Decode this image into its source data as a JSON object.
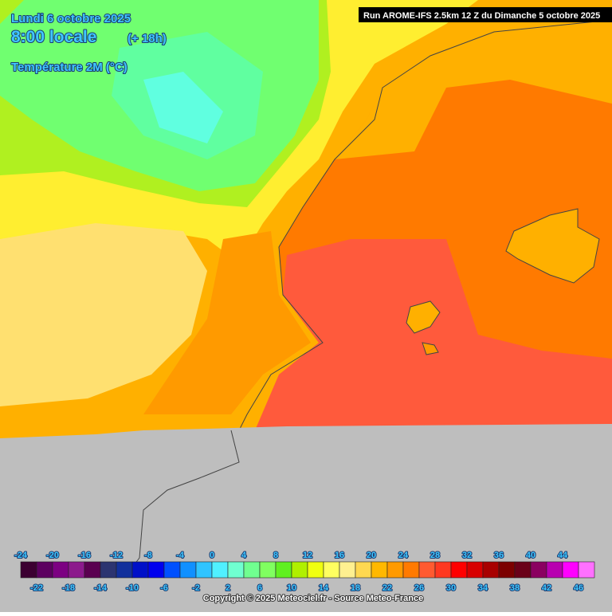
{
  "header": {
    "date": "Lundi 6 octobre 2025",
    "time": "8:00 locale",
    "lead": "(+ 18h)",
    "parameter": "Température 2M (°C)",
    "run": "Run AROME-IFS 2.5km 12 Z du Dimanche 5 octobre 2025"
  },
  "legend": {
    "labels": [
      -24,
      -22,
      -20,
      -18,
      -16,
      -14,
      -12,
      -10,
      -8,
      -6,
      -4,
      -2,
      0,
      2,
      4,
      6,
      8,
      10,
      12,
      14,
      16,
      18,
      20,
      22,
      24,
      26,
      28,
      30,
      32,
      34,
      36,
      38,
      40,
      42,
      44,
      46
    ],
    "colors": [
      "#3c0032",
      "#5c0060",
      "#7c0082",
      "#8c1a8c",
      "#5a0050",
      "#2c3470",
      "#12309c",
      "#0010c8",
      "#0000ee",
      "#0050ff",
      "#1090ff",
      "#30c4ff",
      "#50f0ff",
      "#70ffd0",
      "#70ff90",
      "#80ff60",
      "#60f020",
      "#b0f000",
      "#f0ff10",
      "#ffff60",
      "#fff090",
      "#ffd850",
      "#ffb800",
      "#ff9a00",
      "#ff7a00",
      "#ff5a30",
      "#ff3820",
      "#ff0000",
      "#d80000",
      "#a80000",
      "#7c0000",
      "#6a0018",
      "#8a0060",
      "#b800b0",
      "#ff00ff",
      "#ff70ff"
    ]
  },
  "footer": {
    "copyright": "Copyright © 2025 Meteociel.fr - Source Meteo-France"
  }
}
